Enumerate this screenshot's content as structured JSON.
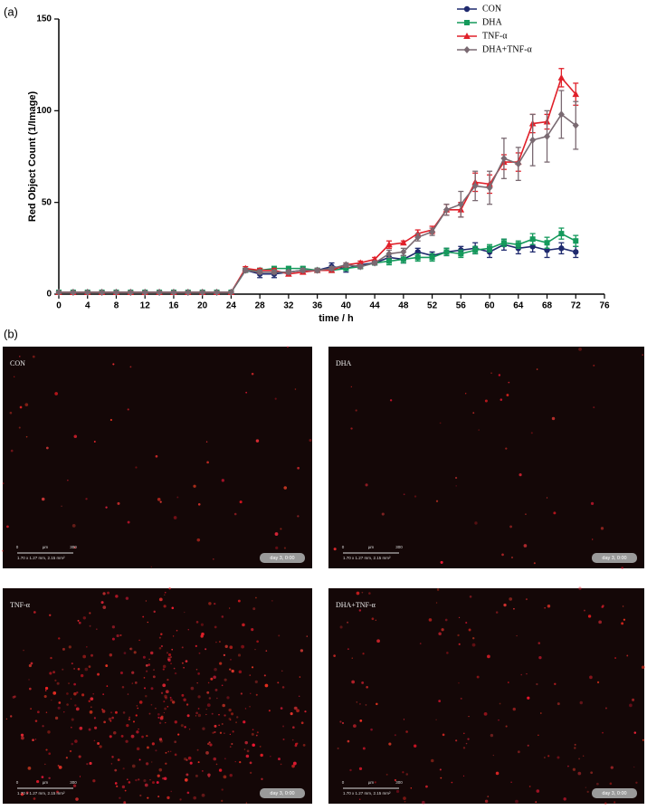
{
  "chart_data": {
    "type": "line",
    "panel_label": "(a)",
    "x_label": "time / h",
    "y_label": "Red Object Count (1/Image)",
    "x": [
      0,
      2,
      4,
      6,
      8,
      10,
      12,
      14,
      16,
      18,
      20,
      22,
      24,
      26,
      28,
      30,
      32,
      34,
      36,
      38,
      40,
      42,
      44,
      46,
      48,
      50,
      52,
      54,
      56,
      58,
      60,
      62,
      64,
      66,
      68,
      70,
      72
    ],
    "xlim": [
      0,
      76
    ],
    "xticks": [
      0,
      4,
      8,
      12,
      16,
      20,
      24,
      28,
      32,
      36,
      40,
      44,
      48,
      52,
      56,
      60,
      64,
      68,
      72,
      76
    ],
    "ylim": [
      0,
      150
    ],
    "yticks": [
      0,
      50,
      100,
      150
    ],
    "legend": "top-right",
    "series": [
      {
        "name": "CON",
        "color": "#1f2a6e",
        "marker": "circle",
        "values": [
          1,
          1,
          1,
          1,
          1,
          1,
          1,
          1,
          1,
          1,
          1,
          1,
          1,
          13,
          11,
          11,
          12,
          13,
          13,
          15,
          14,
          16,
          17,
          20,
          19,
          23,
          21,
          23,
          24,
          25,
          23,
          27,
          25,
          26,
          24,
          25,
          23
        ],
        "errors": [
          0.5,
          0.5,
          0.5,
          0.5,
          0.5,
          0.5,
          0.5,
          0.5,
          0.5,
          0.5,
          0.5,
          0.5,
          0.5,
          1,
          2,
          2,
          1,
          1,
          1,
          2,
          2,
          1,
          1,
          2,
          2,
          2,
          2,
          2,
          2,
          3,
          3,
          3,
          3,
          3,
          4,
          3,
          3
        ]
      },
      {
        "name": "DHA",
        "color": "#159a5c",
        "marker": "square",
        "values": [
          1,
          1,
          1,
          1,
          1,
          1,
          1,
          1,
          1,
          1,
          1,
          1,
          1,
          13,
          13,
          14,
          14,
          14,
          13,
          13,
          14,
          15,
          17,
          18,
          19,
          20,
          20,
          23,
          22,
          24,
          25,
          28,
          27,
          30,
          28,
          33,
          29
        ],
        "errors": [
          0.5,
          0.5,
          0.5,
          0.5,
          0.5,
          0.5,
          0.5,
          0.5,
          0.5,
          0.5,
          0.5,
          0.5,
          0.5,
          1,
          1,
          1,
          1,
          1,
          1,
          1,
          1,
          1,
          1,
          2,
          2,
          2,
          2,
          2,
          2,
          2,
          2,
          2,
          2,
          3,
          3,
          3,
          3
        ]
      },
      {
        "name": "TNF-α",
        "color": "#e0202a",
        "marker": "triangle",
        "values": [
          1,
          1,
          1,
          1,
          1,
          1,
          1,
          1,
          1,
          1,
          1,
          1,
          1,
          14,
          13,
          13,
          11,
          12,
          13,
          13,
          16,
          17,
          19,
          27,
          28,
          33,
          35,
          46,
          46,
          61,
          60,
          72,
          72,
          93,
          94,
          118,
          109
        ],
        "errors": [
          0.5,
          0.5,
          0.5,
          0.5,
          0.5,
          0.5,
          0.5,
          0.5,
          0.5,
          0.5,
          0.5,
          0.5,
          0.5,
          1,
          1,
          1,
          1,
          1,
          1,
          1,
          1,
          1,
          1,
          2,
          1,
          2,
          2,
          3,
          4,
          5,
          5,
          4,
          5,
          5,
          4,
          5,
          6
        ]
      },
      {
        "name": "DHA+TNF-α",
        "color": "#7a6a72",
        "marker": "diamond",
        "values": [
          1,
          1,
          1,
          1,
          1,
          1,
          1,
          1,
          1,
          1,
          1,
          1,
          1,
          13,
          12,
          12,
          12,
          13,
          13,
          14,
          16,
          15,
          17,
          22,
          23,
          31,
          34,
          46,
          49,
          59,
          58,
          74,
          71,
          84,
          86,
          98,
          92
        ],
        "errors": [
          0.5,
          0.5,
          0.5,
          0.5,
          0.5,
          0.5,
          0.5,
          0.5,
          0.5,
          0.5,
          0.5,
          0.5,
          0.5,
          1,
          1,
          1,
          1,
          1,
          1,
          1,
          1,
          1,
          1,
          2,
          2,
          2,
          2,
          3,
          7,
          8,
          9,
          11,
          9,
          14,
          14,
          13,
          13
        ]
      }
    ]
  },
  "figure_b": {
    "panel_label": "(b)",
    "images": [
      {
        "label": "CON",
        "scale_start": "0",
        "scale_unit": "µm",
        "scale_end": "300",
        "size": "1.70 x 1.27 mm, 2.15 mm²",
        "time": "day 3, 0:00"
      },
      {
        "label": "DHA",
        "scale_start": "0",
        "scale_unit": "µm",
        "scale_end": "300",
        "size": "1.70 x 1.27 mm, 2.15 mm²",
        "time": "day 3, 0:00"
      },
      {
        "label": "TNF-α",
        "scale_start": "0",
        "scale_unit": "µm",
        "scale_end": "300",
        "size": "1.70 x 1.27 mm, 2.15 mm²",
        "time": "day 3, 0:00"
      },
      {
        "label": "DHA+TNF-α",
        "scale_start": "0",
        "scale_unit": "µm",
        "scale_end": "300",
        "size": "1.70 x 1.27 mm, 2.15 mm²",
        "time": "day 3, 0:00"
      }
    ]
  }
}
